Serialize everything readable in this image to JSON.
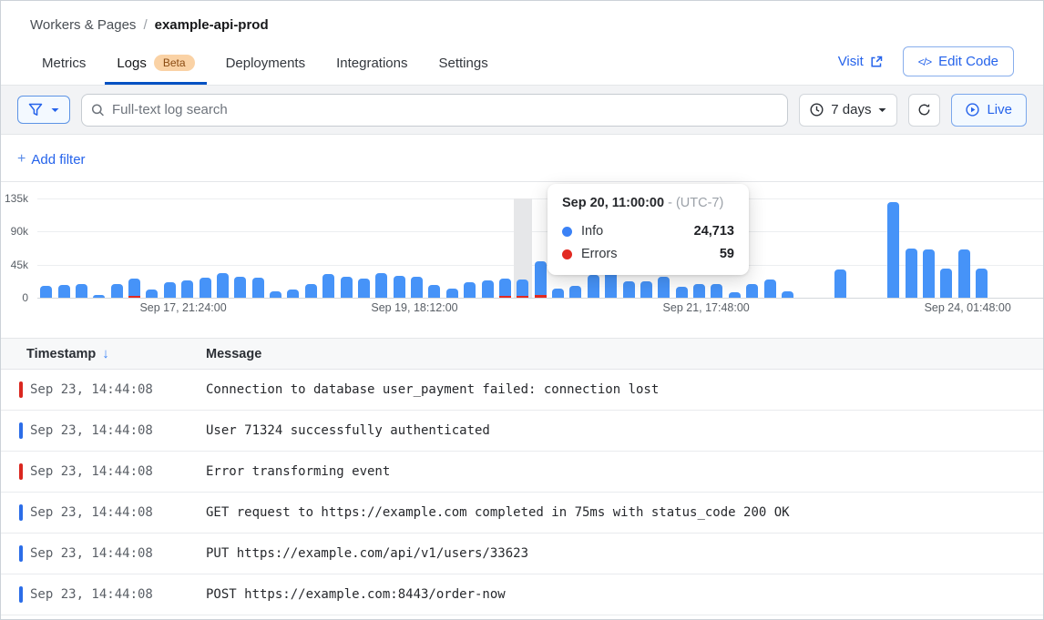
{
  "breadcrumb": {
    "root": "Workers & Pages",
    "separator": "/",
    "current": "example-api-prod"
  },
  "tabs": [
    {
      "label": "Metrics",
      "active": false
    },
    {
      "label": "Logs",
      "active": true,
      "badge": "Beta"
    },
    {
      "label": "Deployments",
      "active": false
    },
    {
      "label": "Integrations",
      "active": false
    },
    {
      "label": "Settings",
      "active": false
    }
  ],
  "header_actions": {
    "visit_label": "Visit",
    "edit_code_label": "Edit Code",
    "code_glyph": "</>"
  },
  "filter_bar": {
    "search_placeholder": "Full-text log search",
    "time_range_label": "7 days",
    "live_label": "Live"
  },
  "add_filter": {
    "plus": "+",
    "label": "Add filter"
  },
  "tooltip": {
    "time": "Sep 20, 11:00:00",
    "tz": "- (UTC-7)",
    "rows": [
      {
        "label": "Info",
        "value": "24,713",
        "color": "#3b82f6"
      },
      {
        "label": "Errors",
        "value": "59",
        "color": "#e22a22"
      }
    ]
  },
  "chart_data": {
    "type": "bar",
    "title": "Log volume over time",
    "ylim": [
      0,
      135000
    ],
    "yticks": [
      {
        "label": "135k",
        "value": 135000
      },
      {
        "label": "90k",
        "value": 90000
      },
      {
        "label": "45k",
        "value": 45000
      },
      {
        "label": "0",
        "value": 0
      }
    ],
    "xticks": [
      {
        "label": "Sep 17, 21:24:00",
        "x_pct": 14.5
      },
      {
        "label": "Sep 19, 18:12:00",
        "x_pct": 37.5
      },
      {
        "label": "Sep 21, 17:48:00",
        "x_pct": 66.5
      },
      {
        "label": "Sep 24, 01:48:00",
        "x_pct": 92.5
      }
    ],
    "legend": [
      {
        "name": "Info",
        "color": "#4693f8"
      },
      {
        "name": "Errors",
        "color": "#e22a22"
      }
    ],
    "values": [
      16000,
      17000,
      19000,
      4000,
      18000,
      26000,
      11000,
      21000,
      23000,
      27000,
      34000,
      29000,
      27000,
      9000,
      11000,
      18000,
      32000,
      29000,
      26000,
      34000,
      30000,
      28000,
      17000,
      12000,
      21000,
      23000,
      26000,
      24772,
      50000,
      12000,
      16000,
      31000,
      36000,
      22000,
      22000,
      28000,
      15000,
      19000,
      19000,
      7000,
      18000,
      25000,
      9000,
      0,
      0,
      38000,
      0,
      0,
      130000,
      67000,
      66000,
      40000,
      66000,
      40000,
      0,
      0,
      0
    ],
    "error_indices": [
      5,
      26,
      27,
      28
    ],
    "hover_index": 27,
    "hovered_bar": {
      "info": 24713,
      "errors": 59
    }
  },
  "table": {
    "headers": {
      "timestamp": "Timestamp",
      "message": "Message"
    },
    "sort_icon": "↓",
    "rows": [
      {
        "level": "error",
        "timestamp": "Sep 23, 14:44:08",
        "message": "Connection to database user_payment failed: connection lost"
      },
      {
        "level": "info",
        "timestamp": "Sep 23, 14:44:08",
        "message": "User 71324 successfully authenticated"
      },
      {
        "level": "error",
        "timestamp": "Sep 23, 14:44:08",
        "message": "Error transforming event"
      },
      {
        "level": "info",
        "timestamp": "Sep 23, 14:44:08",
        "message": "GET request to https://example.com completed in 75ms with status_code 200 OK"
      },
      {
        "level": "info",
        "timestamp": "Sep 23, 14:44:08",
        "message": "PUT https://example.com/api/v1/users/33623"
      },
      {
        "level": "info",
        "timestamp": "Sep 23, 14:44:08",
        "message": "POST https://example.com:8443/order-now"
      }
    ]
  }
}
